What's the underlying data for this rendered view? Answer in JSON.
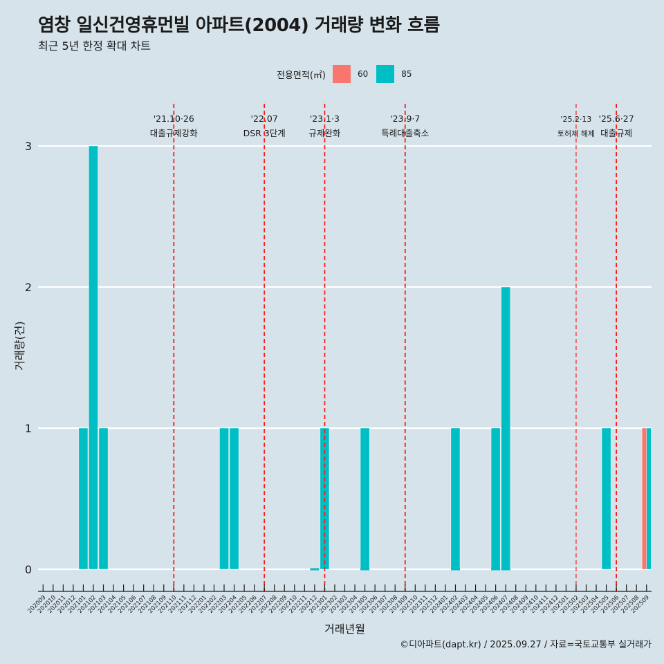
{
  "title": "염창 일신건영휴먼빌 아파트(2004) 거래량 변화 흐름",
  "subtitle": "최근 5년 한정 확대 차트",
  "legend": {
    "title": "전용면적(㎡)",
    "items": [
      {
        "label": "60",
        "color": "#f8766d"
      },
      {
        "label": "85",
        "color": "#00bfc4"
      }
    ]
  },
  "caption": "©디아파트(dapt.kr) / 2025.09.27 / 자료=국토교통부 실거래가",
  "chart_data": {
    "type": "bar",
    "title": "염창 일신건영휴먼빌 아파트(2004) 거래량 변화 흐름",
    "xlabel": "거래년월",
    "ylabel": "거래량(건)",
    "ylim": [
      0,
      3
    ],
    "yticks": [
      0,
      1,
      2,
      3
    ],
    "categories": [
      "202009",
      "202010",
      "202011",
      "202012",
      "202101",
      "202102",
      "202103",
      "202104",
      "202105",
      "202106",
      "202107",
      "202108",
      "202109",
      "202110",
      "202111",
      "202112",
      "202201",
      "202202",
      "202203",
      "202204",
      "202205",
      "202206",
      "202207",
      "202208",
      "202209",
      "202210",
      "202211",
      "202212",
      "202301",
      "202302",
      "202303",
      "202304",
      "202305",
      "202306",
      "202307",
      "202308",
      "202309",
      "202310",
      "202311",
      "202312",
      "202401",
      "202402",
      "202403",
      "202404",
      "202405",
      "202406",
      "202407",
      "202408",
      "202409",
      "202410",
      "202411",
      "202412",
      "202501",
      "202502",
      "202503",
      "202504",
      "202505",
      "202506",
      "202507",
      "202508",
      "202509"
    ],
    "series": [
      {
        "name": "60",
        "color": "#f8766d",
        "values": [
          0,
          0,
          0,
          0,
          0,
          0,
          0,
          0,
          0,
          0,
          0,
          0,
          0,
          0,
          0,
          0,
          0,
          0,
          0,
          0,
          0,
          0,
          0,
          0,
          0,
          0,
          0,
          0,
          0,
          0,
          0,
          0,
          0,
          0,
          0,
          0,
          0,
          0,
          0,
          0,
          0,
          0,
          0,
          0,
          0,
          0,
          0,
          0,
          0,
          0,
          0,
          0,
          0,
          0,
          0,
          0,
          0,
          0,
          0,
          0,
          1
        ]
      },
      {
        "name": "85",
        "color": "#00bfc4",
        "values": [
          0,
          0,
          0,
          0,
          1,
          3,
          1,
          0,
          0,
          0,
          0,
          0,
          0,
          0,
          0,
          0,
          0,
          0,
          1,
          1,
          0,
          0,
          0,
          0,
          0,
          0,
          0,
          0,
          1,
          0,
          0,
          0,
          1,
          0,
          0,
          0,
          0,
          0,
          0,
          0,
          0,
          1,
          0,
          0,
          0,
          1,
          2,
          0,
          0,
          0,
          0,
          0,
          0,
          0,
          0,
          0,
          1,
          0,
          0,
          0,
          1
        ]
      }
    ],
    "zero_markers": [
      {
        "month": "202212",
        "series": "85"
      },
      {
        "month": "202305",
        "series": "85"
      },
      {
        "month": "202402",
        "series": "85"
      },
      {
        "month": "202406",
        "series": "85"
      },
      {
        "month": "202407",
        "series": "85"
      }
    ],
    "events": [
      {
        "month": "202110",
        "date": "'21.10·26",
        "label": "대출규제강화",
        "style": "thick"
      },
      {
        "month": "202207",
        "date": "'22.07",
        "label": "DSR 3단계",
        "style": "thick"
      },
      {
        "month": "202301",
        "date": "'23.1·3",
        "label": "규제완화",
        "style": "thick"
      },
      {
        "month": "202309",
        "date": "'23.9·7",
        "label": "특례대출축소",
        "style": "thick"
      },
      {
        "month": "202502",
        "date": "'25.2·13",
        "label": "토허제 해제",
        "style": "thin"
      },
      {
        "month": "202506",
        "date": "'25.6·27",
        "label": "대출규제",
        "style": "thick"
      }
    ],
    "grid": true
  }
}
